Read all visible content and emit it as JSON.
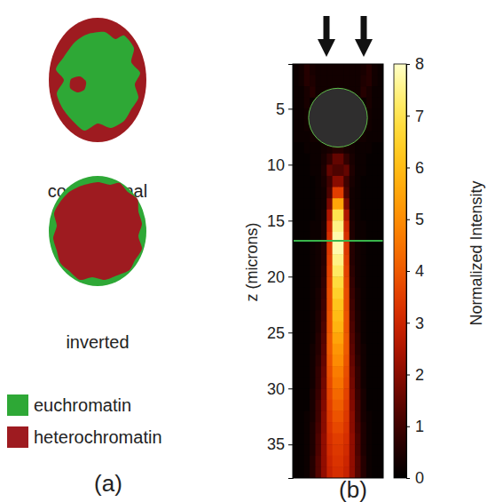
{
  "panel_a": {
    "label": "(a)",
    "nuclei": [
      {
        "label": "conventional"
      },
      {
        "label": "inverted"
      }
    ],
    "legend": [
      {
        "label": "euchromatin",
        "color": "#2ea836"
      },
      {
        "label": "heterochromatin",
        "color": "#9e1b20"
      }
    ]
  },
  "chart_data": {
    "type": "heatmap",
    "panel_label": "(b)",
    "y_label": "z (microns)",
    "xlim": [
      -4,
      4
    ],
    "ylim": [
      1,
      38
    ],
    "yticks": [
      5,
      10,
      15,
      20,
      25,
      30,
      35
    ],
    "tick_labels": "y",
    "x_edges": [
      -4,
      -3.5,
      -3,
      -2.5,
      -2,
      -1.5,
      -1,
      -0.5,
      0,
      0.5,
      1,
      1.5,
      2,
      2.5,
      3,
      3.5,
      4
    ],
    "y_edges": [
      1,
      2,
      3,
      4,
      5,
      6,
      7,
      8,
      9,
      10,
      11,
      12,
      13,
      14,
      15,
      16,
      17,
      18,
      19,
      20,
      21,
      22,
      23,
      24,
      25,
      26,
      27,
      28,
      29,
      30,
      31,
      32,
      33,
      34,
      35,
      36,
      37,
      38
    ],
    "cells": [
      [
        0.2,
        0.3,
        0.6,
        0.4,
        0.3,
        0.3,
        0.3,
        0.3,
        0.3,
        0.3,
        0.3,
        0.3,
        0.4,
        0.6,
        0.3,
        0.2
      ],
      [
        0.2,
        0.3,
        0.6,
        0.5,
        0.3,
        0.3,
        0.3,
        0.3,
        0.3,
        0.3,
        0.3,
        0.3,
        0.5,
        0.6,
        0.3,
        0.2
      ],
      [
        0.2,
        0.2,
        0.4,
        0.6,
        0.3,
        0.3,
        0.3,
        0.3,
        0.3,
        0.3,
        0.3,
        0.3,
        0.6,
        0.4,
        0.2,
        0.2
      ],
      [
        0.2,
        0.2,
        0.4,
        0.2,
        0.2,
        0.2,
        0.2,
        0.2,
        0.2,
        0.2,
        0.2,
        0.2,
        0.2,
        0.4,
        0.2,
        0.2
      ],
      [
        0.2,
        0.2,
        0.3,
        0.3,
        0.3,
        0.3,
        0.3,
        0.3,
        0.3,
        0.3,
        0.3,
        0.3,
        0.3,
        0.3,
        0.2,
        0.2
      ],
      [
        0.2,
        0.2,
        0.3,
        0.3,
        0.3,
        0.3,
        0.3,
        0.3,
        0.3,
        0.3,
        0.3,
        0.3,
        0.3,
        0.3,
        0.2,
        0.2
      ],
      [
        0.2,
        0.2,
        0.2,
        0.3,
        0.3,
        0.3,
        0.3,
        0.3,
        0.3,
        0.3,
        0.3,
        0.3,
        0.3,
        0.2,
        0.2,
        0.2
      ],
      [
        0.1,
        0.1,
        0.2,
        0.2,
        0.2,
        0.3,
        0.4,
        0.6,
        0.6,
        0.4,
        0.3,
        0.2,
        0.2,
        0.2,
        0.1,
        0.1
      ],
      [
        0.1,
        0.1,
        0.1,
        0.2,
        0.2,
        0.4,
        0.8,
        1.5,
        1.5,
        0.8,
        0.4,
        0.2,
        0.2,
        0.1,
        0.1,
        0.1
      ],
      [
        0.1,
        0.1,
        0.1,
        0.2,
        0.2,
        0.5,
        1.5,
        1.2,
        1.2,
        1.5,
        0.5,
        0.2,
        0.2,
        0.1,
        0.1,
        0.1
      ],
      [
        0.1,
        0.1,
        0.1,
        0.1,
        0.2,
        0.4,
        1.0,
        2.0,
        2.0,
        1.0,
        0.4,
        0.2,
        0.1,
        0.1,
        0.1,
        0.1
      ],
      [
        0.1,
        0.1,
        0.1,
        0.1,
        0.2,
        0.3,
        1.2,
        3.5,
        3.5,
        1.2,
        0.3,
        0.2,
        0.1,
        0.1,
        0.1,
        0.1
      ],
      [
        0.1,
        0.1,
        0.1,
        0.1,
        0.2,
        0.3,
        1.8,
        5.5,
        5.5,
        1.8,
        0.3,
        0.2,
        0.1,
        0.1,
        0.1,
        0.1
      ],
      [
        0.1,
        0.1,
        0.1,
        0.1,
        0.2,
        0.4,
        2.5,
        7.0,
        7.0,
        2.5,
        0.4,
        0.2,
        0.1,
        0.1,
        0.1,
        0.1
      ],
      [
        0.1,
        0.1,
        0.1,
        0.2,
        0.2,
        0.5,
        3.0,
        7.5,
        7.5,
        3.0,
        0.5,
        0.2,
        0.2,
        0.1,
        0.1,
        0.1
      ],
      [
        0.1,
        0.1,
        0.1,
        0.2,
        0.2,
        0.5,
        3.2,
        7.8,
        7.8,
        3.2,
        0.5,
        0.2,
        0.2,
        0.1,
        0.1,
        0.1
      ],
      [
        0.1,
        0.1,
        0.1,
        0.2,
        0.3,
        0.6,
        3.4,
        7.8,
        7.8,
        3.4,
        0.6,
        0.3,
        0.2,
        0.1,
        0.1,
        0.1
      ],
      [
        0.1,
        0.1,
        0.1,
        0.2,
        0.3,
        0.6,
        3.5,
        7.5,
        7.5,
        3.5,
        0.6,
        0.3,
        0.2,
        0.1,
        0.1,
        0.1
      ],
      [
        0.1,
        0.1,
        0.1,
        0.2,
        0.3,
        0.7,
        3.6,
        7.2,
        7.2,
        3.6,
        0.7,
        0.3,
        0.2,
        0.1,
        0.1,
        0.1
      ],
      [
        0.1,
        0.1,
        0.1,
        0.2,
        0.3,
        0.8,
        3.7,
        6.8,
        6.8,
        3.7,
        0.8,
        0.3,
        0.2,
        0.1,
        0.1,
        0.1
      ],
      [
        0.1,
        0.1,
        0.1,
        0.2,
        0.4,
        0.9,
        3.8,
        6.5,
        6.5,
        3.8,
        0.9,
        0.4,
        0.2,
        0.1,
        0.1,
        0.1
      ],
      [
        0.1,
        0.1,
        0.1,
        0.2,
        0.4,
        1.0,
        3.8,
        6.2,
        6.2,
        3.8,
        1.0,
        0.4,
        0.2,
        0.1,
        0.1,
        0.1
      ],
      [
        0.1,
        0.1,
        0.1,
        0.2,
        0.5,
        1.1,
        3.9,
        6.0,
        6.0,
        3.9,
        1.1,
        0.5,
        0.2,
        0.1,
        0.1,
        0.1
      ],
      [
        0.1,
        0.1,
        0.1,
        0.2,
        0.5,
        1.2,
        3.9,
        5.8,
        5.8,
        3.9,
        1.2,
        0.5,
        0.2,
        0.1,
        0.1,
        0.1
      ],
      [
        0.1,
        0.1,
        0.1,
        0.2,
        0.6,
        1.3,
        4.0,
        5.5,
        5.5,
        4.0,
        1.3,
        0.6,
        0.2,
        0.1,
        0.1,
        0.1
      ],
      [
        0.1,
        0.1,
        0.1,
        0.3,
        0.6,
        1.4,
        4.0,
        5.2,
        5.2,
        4.0,
        1.4,
        0.6,
        0.3,
        0.1,
        0.1,
        0.1
      ],
      [
        0.1,
        0.1,
        0.1,
        0.3,
        0.7,
        1.5,
        3.9,
        5.0,
        5.0,
        3.9,
        1.5,
        0.7,
        0.3,
        0.1,
        0.1,
        0.1
      ],
      [
        0.1,
        0.1,
        0.1,
        0.3,
        0.8,
        1.6,
        3.8,
        4.7,
        4.7,
        3.8,
        1.6,
        0.8,
        0.3,
        0.1,
        0.1,
        0.1
      ],
      [
        0.1,
        0.1,
        0.1,
        0.3,
        0.8,
        1.7,
        3.7,
        4.5,
        4.5,
        3.7,
        1.7,
        0.8,
        0.3,
        0.1,
        0.1,
        0.1
      ],
      [
        0.1,
        0.1,
        0.1,
        0.4,
        0.9,
        1.8,
        3.6,
        4.3,
        4.3,
        3.6,
        1.8,
        0.9,
        0.4,
        0.1,
        0.1,
        0.1
      ],
      [
        0.1,
        0.1,
        0.1,
        0.4,
        1.0,
        1.9,
        3.5,
        4.1,
        4.1,
        3.5,
        1.9,
        1.0,
        0.4,
        0.1,
        0.1,
        0.1
      ],
      [
        0.1,
        0.1,
        0.2,
        0.4,
        1.0,
        2.0,
        3.4,
        3.9,
        3.9,
        3.4,
        2.0,
        1.0,
        0.4,
        0.2,
        0.1,
        0.1
      ],
      [
        0.1,
        0.1,
        0.2,
        0.5,
        1.1,
        2.0,
        3.3,
        3.7,
        3.7,
        3.3,
        2.0,
        1.1,
        0.5,
        0.2,
        0.1,
        0.1
      ],
      [
        0.1,
        0.1,
        0.2,
        0.5,
        1.2,
        2.1,
        3.2,
        3.5,
        3.5,
        3.2,
        2.1,
        1.2,
        0.5,
        0.2,
        0.1,
        0.1
      ],
      [
        0.1,
        0.1,
        0.2,
        0.5,
        1.2,
        2.1,
        3.1,
        3.4,
        3.4,
        3.1,
        2.1,
        1.2,
        0.5,
        0.2,
        0.1,
        0.1
      ],
      [
        0.1,
        0.1,
        0.2,
        0.6,
        1.3,
        2.1,
        3.0,
        3.3,
        3.3,
        3.0,
        2.1,
        1.3,
        0.6,
        0.2,
        0.1,
        0.1
      ],
      [
        0.1,
        0.1,
        0.2,
        0.6,
        1.3,
        2.1,
        2.9,
        3.2,
        3.2,
        2.9,
        2.1,
        1.3,
        0.6,
        0.2,
        0.1,
        0.1
      ]
    ],
    "colorbar": {
      "label": "Normalized Intensity",
      "range": [
        0,
        8
      ],
      "ticks": [
        0,
        1,
        2,
        3,
        4,
        5,
        6,
        7,
        8
      ]
    },
    "sphere": {
      "x": 0,
      "z": 5.8,
      "radius": 2.6
    },
    "line_z": 16.8
  }
}
